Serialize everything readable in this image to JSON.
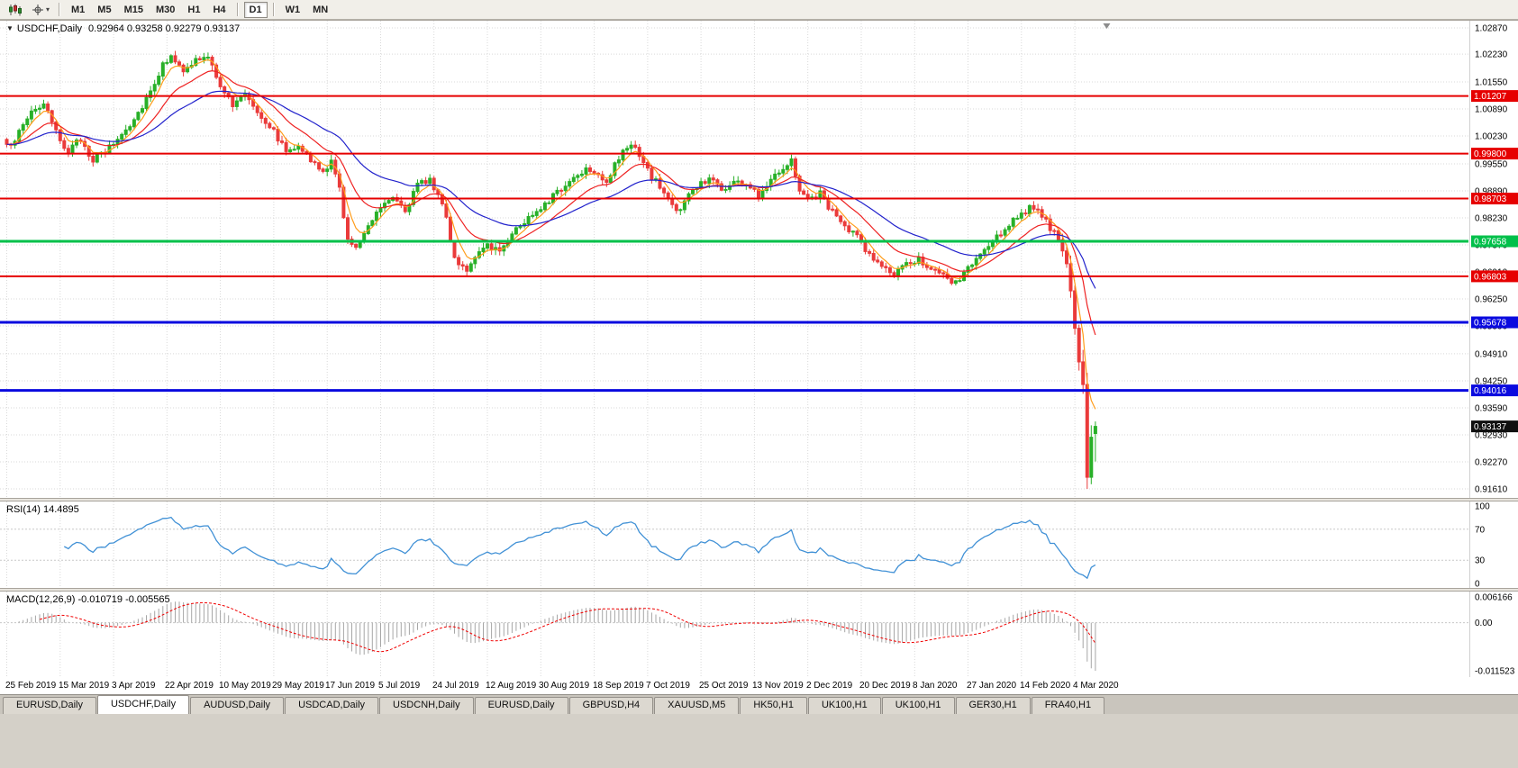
{
  "toolbar": {
    "timeframes": [
      {
        "label": "M1",
        "active": false
      },
      {
        "label": "M5",
        "active": false
      },
      {
        "label": "M15",
        "active": false
      },
      {
        "label": "M30",
        "active": false
      },
      {
        "label": "H1",
        "active": false
      },
      {
        "label": "H4",
        "active": false
      },
      {
        "label": "D1",
        "active": true
      },
      {
        "label": "W1",
        "active": false
      },
      {
        "label": "MN",
        "active": false
      }
    ]
  },
  "chart": {
    "dropdown_arrow": "▼",
    "symbol_period": "USDCHF,Daily",
    "ohlc_text": "0.92964 0.93258 0.92279 0.93137",
    "current_price_label": "0.93137"
  },
  "rsi_panel": {
    "label": "RSI(14) 14.4895"
  },
  "macd_panel": {
    "label": "MACD(12,26,9) -0.010719 -0.005565"
  },
  "tabs": [
    {
      "label": "EURUSD,Daily",
      "active": false
    },
    {
      "label": "USDCHF,Daily",
      "active": true
    },
    {
      "label": "AUDUSD,Daily",
      "active": false
    },
    {
      "label": "USDCAD,Daily",
      "active": false
    },
    {
      "label": "USDCNH,Daily",
      "active": false
    },
    {
      "label": "EURUSD,Daily",
      "active": false
    },
    {
      "label": "GBPUSD,H4",
      "active": false
    },
    {
      "label": "XAUUSD,M5",
      "active": false
    },
    {
      "label": "HK50,H1",
      "active": false
    },
    {
      "label": "UK100,H1",
      "active": false
    },
    {
      "label": "UK100,H1",
      "active": false
    },
    {
      "label": "GER30,H1",
      "active": false
    },
    {
      "label": "FRA40,H1",
      "active": false
    }
  ],
  "chart_data": {
    "type": "candlestick",
    "symbol": "USDCHF",
    "timeframe": "Daily",
    "ohlc_current": {
      "open": 0.92964,
      "high": 0.93258,
      "low": 0.92279,
      "close": 0.93137
    },
    "ylim": [
      0.9161,
      1.0287
    ],
    "price_axis_ticks": [
      1.0287,
      1.0223,
      1.0155,
      1.0089,
      1.0023,
      0.9955,
      0.9889,
      0.9823,
      0.9757,
      0.9691,
      0.9625,
      0.9559,
      0.9491,
      0.9425,
      0.9359,
      0.9293,
      0.9227,
      0.9161
    ],
    "date_ticks": [
      "25 Feb 2019",
      "15 Mar 2019",
      "3 Apr 2019",
      "22 Apr 2019",
      "10 May 2019",
      "29 May 2019",
      "17 Jun 2019",
      "5 Jul 2019",
      "24 Jul 2019",
      "12 Aug 2019",
      "30 Aug 2019",
      "18 Sep 2019",
      "7 Oct 2019",
      "25 Oct 2019",
      "13 Nov 2019",
      "2 Dec 2019",
      "20 Dec 2019",
      "8 Jan 2020",
      "27 Jan 2020",
      "14 Feb 2020",
      "4 Mar 2020"
    ],
    "bars_per_date_tick": 13,
    "total_bars": 266,
    "price_keypoints": [
      [
        0,
        0.9995
      ],
      [
        3,
        1.003
      ],
      [
        6,
        1.0085
      ],
      [
        9,
        1.01
      ],
      [
        12,
        1.003
      ],
      [
        15,
        0.9985
      ],
      [
        18,
        1.0015
      ],
      [
        21,
        0.9965
      ],
      [
        24,
        0.9985
      ],
      [
        26,
        1.0005
      ],
      [
        29,
        1.004
      ],
      [
        32,
        1.008
      ],
      [
        35,
        1.0135
      ],
      [
        38,
        1.0195
      ],
      [
        40,
        1.0225
      ],
      [
        43,
        1.0175
      ],
      [
        46,
        1.021
      ],
      [
        49,
        1.0212
      ],
      [
        52,
        1.015
      ],
      [
        55,
        1.0095
      ],
      [
        58,
        1.0128
      ],
      [
        61,
        1.0085
      ],
      [
        65,
        1.0035
      ],
      [
        68,
        0.9985
      ],
      [
        71,
        1.0005
      ],
      [
        74,
        0.996
      ],
      [
        77,
        0.9935
      ],
      [
        79,
        0.9958
      ],
      [
        81,
        0.9895
      ],
      [
        83,
        0.9768
      ],
      [
        85,
        0.9745
      ],
      [
        87,
        0.9792
      ],
      [
        89,
        0.9822
      ],
      [
        91,
        0.9852
      ],
      [
        94,
        0.988
      ],
      [
        97,
        0.9843
      ],
      [
        100,
        0.9902
      ],
      [
        103,
        0.9918
      ],
      [
        106,
        0.9862
      ],
      [
        109,
        0.9725
      ],
      [
        112,
        0.9698
      ],
      [
        115,
        0.9732
      ],
      [
        117,
        0.9758
      ],
      [
        120,
        0.9742
      ],
      [
        123,
        0.9788
      ],
      [
        126,
        0.9812
      ],
      [
        129,
        0.9843
      ],
      [
        132,
        0.9868
      ],
      [
        135,
        0.9893
      ],
      [
        138,
        0.9922
      ],
      [
        141,
        0.9945
      ],
      [
        143,
        0.994
      ],
      [
        146,
        0.9912
      ],
      [
        149,
        0.9968
      ],
      [
        152,
        1.0008
      ],
      [
        154,
        0.9972
      ],
      [
        156,
        0.9938
      ],
      [
        159,
        0.9898
      ],
      [
        162,
        0.9855
      ],
      [
        164,
        0.984
      ],
      [
        166,
        0.9882
      ],
      [
        169,
        0.9905
      ],
      [
        172,
        0.9922
      ],
      [
        174,
        0.989
      ],
      [
        177,
        0.9912
      ],
      [
        180,
        0.9905
      ],
      [
        183,
        0.9878
      ],
      [
        186,
        0.9922
      ],
      [
        189,
        0.9948
      ],
      [
        191,
        0.9962
      ],
      [
        193,
        0.9895
      ],
      [
        195,
        0.9868
      ],
      [
        198,
        0.9882
      ],
      [
        201,
        0.9838
      ],
      [
        204,
        0.9798
      ],
      [
        207,
        0.9778
      ],
      [
        210,
        0.9733
      ],
      [
        213,
        0.9703
      ],
      [
        216,
        0.9685
      ],
      [
        219,
        0.9706
      ],
      [
        222,
        0.9726
      ],
      [
        225,
        0.9698
      ],
      [
        228,
        0.9678
      ],
      [
        231,
        0.9662
      ],
      [
        234,
        0.97
      ],
      [
        237,
        0.9733
      ],
      [
        240,
        0.9762
      ],
      [
        243,
        0.9798
      ],
      [
        246,
        0.9828
      ],
      [
        249,
        0.9845
      ],
      [
        252,
        0.983
      ],
      [
        254,
        0.98
      ],
      [
        256,
        0.9768
      ],
      [
        258,
        0.9698
      ],
      [
        259,
        0.9638
      ],
      [
        260,
        0.956
      ],
      [
        261,
        0.9482
      ],
      [
        262,
        0.94
      ],
      [
        263,
        0.918
      ],
      [
        264,
        0.9296
      ],
      [
        265,
        0.93137
      ]
    ],
    "forced_low": {
      "index": 263,
      "low": 0.9161
    },
    "horizontal_lines": [
      {
        "price": 1.01207,
        "color": "#e60000",
        "label": "1.01207",
        "width": 2
      },
      {
        "price": 0.998,
        "color": "#e60000",
        "label": "0.99800",
        "width": 2
      },
      {
        "price": 0.98703,
        "color": "#e60000",
        "label": "0.98703",
        "width": 2
      },
      {
        "price": 0.97658,
        "color": "#00c04a",
        "label": "0.97658",
        "width": 3
      },
      {
        "price": 0.96803,
        "color": "#e60000",
        "label": "0.96803",
        "width": 2
      },
      {
        "price": 0.95678,
        "color": "#0a0adf",
        "label": "0.95678",
        "width": 3
      },
      {
        "price": 0.94016,
        "color": "#0a0adf",
        "label": "0.94016",
        "width": 3
      }
    ],
    "moving_averages": [
      {
        "type": "ema",
        "period": 5,
        "color": "#ff9c1a"
      },
      {
        "type": "ema",
        "period": 15,
        "color": "#ee2222"
      },
      {
        "type": "ema",
        "period": 35,
        "color": "#2222cc"
      }
    ],
    "candle_colors": {
      "up": "#28b028",
      "down": "#ea3b3b"
    },
    "rsi": {
      "period": 14,
      "value": 14.4895,
      "levels": [
        70,
        30
      ],
      "scale_labels": [
        {
          "v": 100,
          "t": "100"
        },
        {
          "v": 70,
          "t": "70"
        },
        {
          "v": 30,
          "t": "30"
        },
        {
          "v": 0,
          "t": "0"
        }
      ],
      "color": "#4191d6"
    },
    "macd": {
      "fast": 12,
      "slow": 26,
      "signal_period": 9,
      "main_value": -0.010719,
      "signal_value": -0.005565,
      "range": [
        -0.011523,
        0.006166
      ],
      "scale": [
        {
          "v": 0.006166,
          "t": "0.006166"
        },
        {
          "v": 0,
          "t": "0.00"
        },
        {
          "v": -0.011523,
          "t": "-0.011523"
        }
      ],
      "histogram_color": "#a6a6a6",
      "signal_color": "#f00000"
    }
  }
}
